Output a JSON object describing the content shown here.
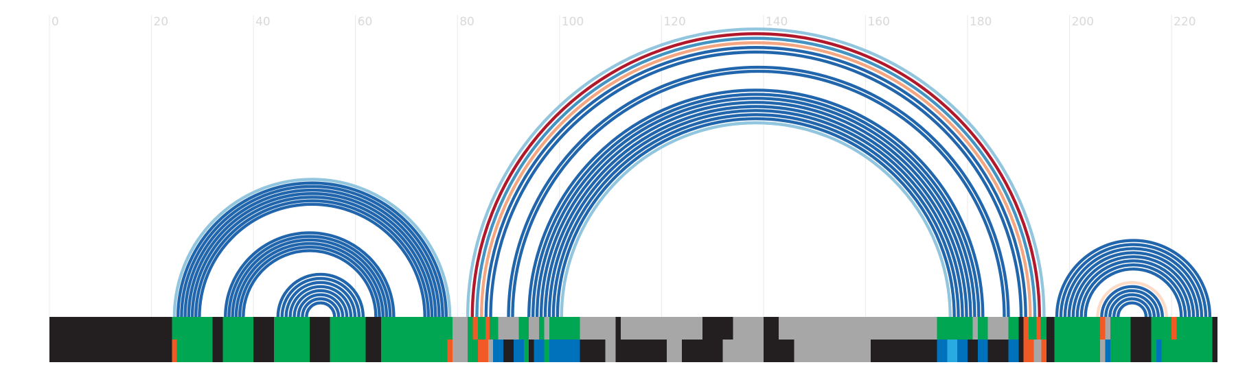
{
  "chart_data": {
    "type": "arc-diagram",
    "x_axis": {
      "min": 0,
      "max": 229,
      "ticks": [
        0,
        20,
        40,
        60,
        80,
        100,
        120,
        140,
        160,
        180,
        200,
        220
      ],
      "tick_labels": [
        "0",
        "20",
        "40",
        "60",
        "80",
        "100",
        "120",
        "140",
        "160",
        "180",
        "200",
        "220"
      ],
      "grid": true
    },
    "colors": {
      "blue": "#2166ac",
      "light_blue": "#92c5de",
      "mid_blue": "#4393c3",
      "red": "#b2182b",
      "salmon": "#f4a582",
      "pale_pink": "#fddbc7",
      "green": "#00a651",
      "black": "#231f20",
      "gray": "#a7a7a7",
      "orange": "#f15a24",
      "bright_blue": "#0072bc",
      "cyan": "#29abe2"
    },
    "arc_groups": [
      {
        "arcs": [
          {
            "start": 24.5,
            "end": 78.5,
            "color": "light_blue"
          },
          {
            "start": 25.2,
            "end": 77.8,
            "color": "blue"
          },
          {
            "start": 25.9,
            "end": 77.1,
            "color": "blue"
          },
          {
            "start": 26.6,
            "end": 76.4,
            "color": "blue"
          },
          {
            "start": 27.3,
            "end": 75.7,
            "color": "blue"
          },
          {
            "start": 28.0,
            "end": 75.0,
            "color": "blue"
          },
          {
            "start": 28.7,
            "end": 74.3,
            "color": "blue"
          },
          {
            "start": 29.4,
            "end": 73.6,
            "color": "blue"
          },
          {
            "start": 34.5,
            "end": 67.5,
            "color": "blue"
          },
          {
            "start": 35.2,
            "end": 66.8,
            "color": "blue"
          },
          {
            "start": 35.9,
            "end": 66.1,
            "color": "blue"
          },
          {
            "start": 36.6,
            "end": 65.4,
            "color": "blue"
          },
          {
            "start": 37.3,
            "end": 64.7,
            "color": "blue"
          },
          {
            "start": 38.0,
            "end": 64.0,
            "color": "blue"
          },
          {
            "start": 44.8,
            "end": 61.5,
            "color": "blue"
          },
          {
            "start": 45.6,
            "end": 60.7,
            "color": "blue"
          },
          {
            "start": 46.4,
            "end": 59.9,
            "color": "blue"
          },
          {
            "start": 47.2,
            "end": 59.1,
            "color": "blue"
          },
          {
            "start": 48.0,
            "end": 58.3,
            "color": "blue"
          },
          {
            "start": 48.8,
            "end": 57.5,
            "color": "blue"
          },
          {
            "start": 49.6,
            "end": 56.7,
            "color": "blue"
          },
          {
            "start": 50.4,
            "end": 55.9,
            "color": "blue"
          }
        ]
      },
      {
        "arcs": [
          {
            "start": 82.0,
            "end": 195.0,
            "color": "light_blue"
          },
          {
            "start": 82.9,
            "end": 194.1,
            "color": "red"
          },
          {
            "start": 83.8,
            "end": 193.2,
            "color": "mid_blue"
          },
          {
            "start": 84.7,
            "end": 192.3,
            "color": "salmon"
          },
          {
            "start": 85.6,
            "end": 191.4,
            "color": "blue"
          },
          {
            "start": 86.5,
            "end": 190.5,
            "color": "blue"
          },
          {
            "start": 90.0,
            "end": 188.0,
            "color": "blue"
          },
          {
            "start": 90.8,
            "end": 187.2,
            "color": "blue"
          },
          {
            "start": 94.0,
            "end": 183.0,
            "color": "blue"
          },
          {
            "start": 94.8,
            "end": 182.2,
            "color": "blue"
          },
          {
            "start": 95.6,
            "end": 181.4,
            "color": "blue"
          },
          {
            "start": 96.4,
            "end": 180.6,
            "color": "blue"
          },
          {
            "start": 97.2,
            "end": 179.8,
            "color": "blue"
          },
          {
            "start": 98.0,
            "end": 179.0,
            "color": "blue"
          },
          {
            "start": 98.8,
            "end": 178.2,
            "color": "blue"
          },
          {
            "start": 99.6,
            "end": 177.4,
            "color": "blue"
          },
          {
            "start": 100.4,
            "end": 176.6,
            "color": "light_blue"
          }
        ]
      },
      {
        "arcs": [
          {
            "start": 197.5,
            "end": 227.5,
            "color": "blue"
          },
          {
            "start": 198.3,
            "end": 226.7,
            "color": "blue"
          },
          {
            "start": 199.1,
            "end": 225.9,
            "color": "blue"
          },
          {
            "start": 199.9,
            "end": 225.1,
            "color": "blue"
          },
          {
            "start": 200.7,
            "end": 224.3,
            "color": "blue"
          },
          {
            "start": 201.5,
            "end": 223.5,
            "color": "blue"
          },
          {
            "start": 202.3,
            "end": 222.7,
            "color": "blue"
          },
          {
            "start": 203.1,
            "end": 221.9,
            "color": "blue"
          },
          {
            "start": 205.5,
            "end": 219.0,
            "color": "pale_pink"
          },
          {
            "start": 206.3,
            "end": 218.2,
            "color": "blue"
          },
          {
            "start": 207.1,
            "end": 217.4,
            "color": "blue"
          },
          {
            "start": 207.9,
            "end": 216.6,
            "color": "blue"
          },
          {
            "start": 208.7,
            "end": 215.8,
            "color": "blue"
          },
          {
            "start": 209.5,
            "end": 215.0,
            "color": "blue"
          }
        ]
      }
    ],
    "track_rows": [
      {
        "segments": [
          {
            "start": 0,
            "end": 24,
            "color": "black"
          },
          {
            "start": 24,
            "end": 32,
            "color": "green"
          },
          {
            "start": 32,
            "end": 34,
            "color": "black"
          },
          {
            "start": 34,
            "end": 40,
            "color": "green"
          },
          {
            "start": 40,
            "end": 44,
            "color": "black"
          },
          {
            "start": 44,
            "end": 51,
            "color": "green"
          },
          {
            "start": 51,
            "end": 55,
            "color": "black"
          },
          {
            "start": 55,
            "end": 62,
            "color": "green"
          },
          {
            "start": 62,
            "end": 65,
            "color": "black"
          },
          {
            "start": 65,
            "end": 79,
            "color": "green"
          },
          {
            "start": 79,
            "end": 82,
            "color": "gray"
          },
          {
            "start": 82,
            "end": 83,
            "color": "green"
          },
          {
            "start": 83,
            "end": 84,
            "color": "orange"
          },
          {
            "start": 84,
            "end": 85.5,
            "color": "green"
          },
          {
            "start": 85.5,
            "end": 86.3,
            "color": "orange"
          },
          {
            "start": 86.3,
            "end": 88,
            "color": "green"
          },
          {
            "start": 88,
            "end": 92,
            "color": "gray"
          },
          {
            "start": 92,
            "end": 94,
            "color": "green"
          },
          {
            "start": 94,
            "end": 96,
            "color": "gray"
          },
          {
            "start": 96,
            "end": 97,
            "color": "green"
          },
          {
            "start": 97,
            "end": 98,
            "color": "gray"
          },
          {
            "start": 98,
            "end": 104,
            "color": "green"
          },
          {
            "start": 104,
            "end": 111,
            "color": "gray"
          },
          {
            "start": 111,
            "end": 112,
            "color": "black"
          },
          {
            "start": 112,
            "end": 128,
            "color": "gray"
          },
          {
            "start": 128,
            "end": 134,
            "color": "black"
          },
          {
            "start": 134,
            "end": 140,
            "color": "gray"
          },
          {
            "start": 140,
            "end": 143,
            "color": "black"
          },
          {
            "start": 143,
            "end": 174,
            "color": "gray"
          },
          {
            "start": 174,
            "end": 181,
            "color": "green"
          },
          {
            "start": 181,
            "end": 182,
            "color": "gray"
          },
          {
            "start": 182,
            "end": 184,
            "color": "green"
          },
          {
            "start": 184,
            "end": 188,
            "color": "gray"
          },
          {
            "start": 188,
            "end": 190,
            "color": "green"
          },
          {
            "start": 190,
            "end": 191,
            "color": "black"
          },
          {
            "start": 191,
            "end": 192,
            "color": "orange"
          },
          {
            "start": 192,
            "end": 193.5,
            "color": "green"
          },
          {
            "start": 193.5,
            "end": 194.3,
            "color": "orange"
          },
          {
            "start": 194.3,
            "end": 195.5,
            "color": "green"
          },
          {
            "start": 195.5,
            "end": 197,
            "color": "black"
          },
          {
            "start": 197,
            "end": 206,
            "color": "green"
          },
          {
            "start": 206,
            "end": 207,
            "color": "orange"
          },
          {
            "start": 207,
            "end": 208,
            "color": "gray"
          },
          {
            "start": 208,
            "end": 212,
            "color": "green"
          },
          {
            "start": 212,
            "end": 216,
            "color": "black"
          },
          {
            "start": 216,
            "end": 220,
            "color": "green"
          },
          {
            "start": 220,
            "end": 221,
            "color": "orange"
          },
          {
            "start": 221,
            "end": 228,
            "color": "green"
          },
          {
            "start": 228,
            "end": 229,
            "color": "black"
          }
        ]
      },
      {
        "segments": [
          {
            "start": 0,
            "end": 24,
            "color": "black"
          },
          {
            "start": 24,
            "end": 25,
            "color": "orange"
          },
          {
            "start": 25,
            "end": 32,
            "color": "green"
          },
          {
            "start": 32,
            "end": 34,
            "color": "black"
          },
          {
            "start": 34,
            "end": 40,
            "color": "green"
          },
          {
            "start": 40,
            "end": 44,
            "color": "black"
          },
          {
            "start": 44,
            "end": 51,
            "color": "green"
          },
          {
            "start": 51,
            "end": 55,
            "color": "black"
          },
          {
            "start": 55,
            "end": 62,
            "color": "green"
          },
          {
            "start": 62,
            "end": 65,
            "color": "black"
          },
          {
            "start": 65,
            "end": 78,
            "color": "green"
          },
          {
            "start": 78,
            "end": 79,
            "color": "orange"
          },
          {
            "start": 79,
            "end": 82,
            "color": "gray"
          },
          {
            "start": 82,
            "end": 84,
            "color": "green"
          },
          {
            "start": 84,
            "end": 86,
            "color": "orange"
          },
          {
            "start": 86,
            "end": 87,
            "color": "gray"
          },
          {
            "start": 87,
            "end": 89,
            "color": "bright_blue"
          },
          {
            "start": 89,
            "end": 91,
            "color": "black"
          },
          {
            "start": 91,
            "end": 93,
            "color": "bright_blue"
          },
          {
            "start": 93,
            "end": 94,
            "color": "green"
          },
          {
            "start": 94,
            "end": 95,
            "color": "black"
          },
          {
            "start": 95,
            "end": 97,
            "color": "bright_blue"
          },
          {
            "start": 97,
            "end": 98,
            "color": "green"
          },
          {
            "start": 98,
            "end": 100,
            "color": "bright_blue"
          },
          {
            "start": 100,
            "end": 104,
            "color": "bright_blue"
          },
          {
            "start": 104,
            "end": 109,
            "color": "black"
          },
          {
            "start": 109,
            "end": 111,
            "color": "gray"
          },
          {
            "start": 111,
            "end": 121,
            "color": "black"
          },
          {
            "start": 121,
            "end": 124,
            "color": "gray"
          },
          {
            "start": 124,
            "end": 132,
            "color": "black"
          },
          {
            "start": 132,
            "end": 134,
            "color": "gray"
          },
          {
            "start": 134,
            "end": 140,
            "color": "gray"
          },
          {
            "start": 140,
            "end": 143,
            "color": "black"
          },
          {
            "start": 143,
            "end": 146,
            "color": "black"
          },
          {
            "start": 146,
            "end": 161,
            "color": "gray"
          },
          {
            "start": 161,
            "end": 174,
            "color": "black"
          },
          {
            "start": 174,
            "end": 176,
            "color": "bright_blue"
          },
          {
            "start": 176,
            "end": 178,
            "color": "cyan"
          },
          {
            "start": 178,
            "end": 180,
            "color": "bright_blue"
          },
          {
            "start": 180,
            "end": 182,
            "color": "black"
          },
          {
            "start": 182,
            "end": 184,
            "color": "bright_blue"
          },
          {
            "start": 184,
            "end": 188,
            "color": "black"
          },
          {
            "start": 188,
            "end": 190,
            "color": "bright_blue"
          },
          {
            "start": 190,
            "end": 191,
            "color": "black"
          },
          {
            "start": 191,
            "end": 193,
            "color": "orange"
          },
          {
            "start": 193,
            "end": 194.5,
            "color": "gray"
          },
          {
            "start": 194.5,
            "end": 195.5,
            "color": "orange"
          },
          {
            "start": 195.5,
            "end": 197,
            "color": "black"
          },
          {
            "start": 197,
            "end": 206,
            "color": "green"
          },
          {
            "start": 206,
            "end": 207,
            "color": "gray"
          },
          {
            "start": 207,
            "end": 208,
            "color": "bright_blue"
          },
          {
            "start": 208,
            "end": 212,
            "color": "green"
          },
          {
            "start": 212,
            "end": 216,
            "color": "black"
          },
          {
            "start": 216,
            "end": 217,
            "color": "green"
          },
          {
            "start": 217,
            "end": 218,
            "color": "bright_blue"
          },
          {
            "start": 218,
            "end": 228,
            "color": "green"
          },
          {
            "start": 228,
            "end": 229,
            "color": "black"
          }
        ]
      }
    ]
  }
}
